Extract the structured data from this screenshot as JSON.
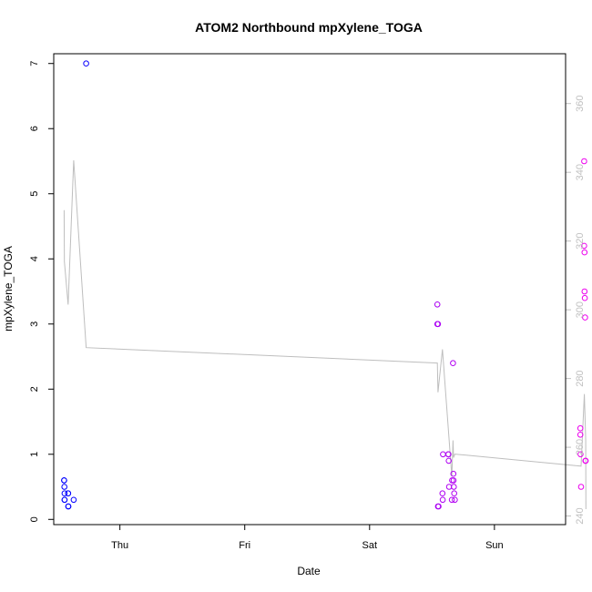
{
  "chart_data": {
    "type": "scatter",
    "title": "ATOM2 Northbound mpXylene_TOGA",
    "xlabel": "Date",
    "ylabel": "mpXylene_TOGA",
    "x_unit": "days since Wednesday 00:00",
    "xlim": [
      0.47,
      4.57
    ],
    "ylim": [
      -0.08,
      7.15
    ],
    "x_ticks": [
      {
        "label": "Thu",
        "value": 1
      },
      {
        "label": "Fri",
        "value": 2
      },
      {
        "label": "Sat",
        "value": 3
      },
      {
        "label": "Sun",
        "value": 4
      }
    ],
    "y_ticks": [
      0,
      1,
      2,
      3,
      4,
      5,
      6,
      7
    ],
    "y2_lim": [
      237.5,
      374.5
    ],
    "y2_ticks": [
      240,
      260,
      280,
      300,
      320,
      340,
      360
    ],
    "colors": {
      "line": "#bebebe",
      "box": "#000000",
      "right_axis": "#c0c0c0",
      "point_start": "#0000ff",
      "point_end": "#ee00ee"
    },
    "series": [
      {
        "role": "points",
        "axis": "left",
        "x": [
          0.553,
          0.553,
          0.555,
          0.557,
          0.557,
          0.557,
          0.585,
          0.585,
          0.587,
          0.587,
          0.63,
          0.73,
          3.543,
          3.543,
          3.548,
          3.548,
          3.552,
          3.584,
          3.586,
          3.588,
          3.63,
          3.632,
          3.634,
          3.637,
          3.659,
          3.661,
          3.668,
          3.671,
          3.673,
          3.675,
          3.678,
          3.683,
          4.688,
          4.688,
          4.69,
          4.694,
          4.719,
          4.719,
          4.722,
          4.722,
          4.724,
          4.726,
          4.728,
          4.731
        ],
        "y": [
          0.6,
          0.6,
          0.5,
          0.4,
          0.3,
          0.3,
          0.4,
          0.4,
          0.2,
          0.2,
          0.3,
          7.0,
          3.3,
          3.0,
          3.0,
          0.2,
          0.2,
          0.4,
          0.3,
          1.0,
          1.0,
          1.0,
          0.9,
          0.5,
          0.3,
          0.6,
          2.4,
          0.7,
          0.6,
          0.5,
          0.4,
          0.3,
          1.4,
          1.3,
          1.0,
          0.5,
          5.5,
          4.2,
          4.1,
          3.5,
          3.4,
          3.1,
          0.9,
          0.9
        ]
      },
      {
        "role": "line",
        "axis": "right",
        "x": [
          0.553,
          0.555,
          0.585,
          0.63,
          0.73,
          3.543,
          3.548,
          3.584,
          3.62,
          3.659,
          3.668,
          3.673,
          3.683,
          4.694,
          4.72,
          4.731,
          4.733
        ],
        "y": [
          329.0,
          314.0,
          301.5,
          343.5,
          289.0,
          284.5,
          276.0,
          288.5,
          270.5,
          251.5,
          262.0,
          257.0,
          258.0,
          254.5,
          275.5,
          262.0,
          242.0
        ]
      }
    ]
  }
}
